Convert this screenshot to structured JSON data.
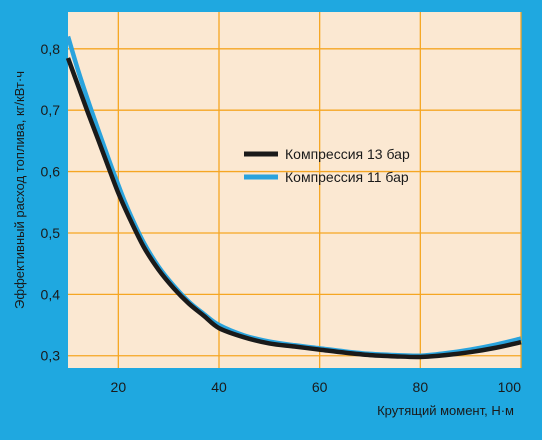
{
  "colors": {
    "frame": "#1fa8e0",
    "plot_bg": "#fbe8d2",
    "grid": "#f5a623",
    "series": [
      "#1a1a1a",
      "#2aa3dd"
    ]
  },
  "chart_data": {
    "type": "line",
    "xlabel": "Крутящий момент, Н·м",
    "ylabel": "Эффективный расход топлива, кг/кВт·ч",
    "xlim": [
      10,
      100
    ],
    "ylim": [
      0.28,
      0.86
    ],
    "x_ticks": [
      20,
      40,
      60,
      80,
      100
    ],
    "x_tick_labels": [
      "20",
      "40",
      "60",
      "80",
      "100"
    ],
    "y_ticks": [
      0.3,
      0.4,
      0.5,
      0.6,
      0.7,
      0.8
    ],
    "y_tick_labels": [
      "0,3",
      "0,4",
      "0,5",
      "0,6",
      "0,7",
      "0,8"
    ],
    "grid": true,
    "legend_position": "center",
    "series": [
      {
        "name": "Компрессия 13 бар",
        "x": [
          10,
          12,
          14,
          16,
          18,
          20,
          22,
          25,
          28,
          31,
          34,
          37,
          40,
          45,
          50,
          55,
          60,
          65,
          70,
          75,
          80,
          85,
          90,
          95,
          100
        ],
        "y": [
          0.785,
          0.74,
          0.695,
          0.652,
          0.608,
          0.565,
          0.528,
          0.478,
          0.44,
          0.41,
          0.385,
          0.365,
          0.345,
          0.33,
          0.32,
          0.315,
          0.31,
          0.305,
          0.301,
          0.299,
          0.298,
          0.301,
          0.306,
          0.313,
          0.322
        ]
      },
      {
        "name": "Компрессия 11 бар",
        "x": [
          10,
          12,
          14,
          16,
          18,
          20,
          22,
          25,
          28,
          31,
          34,
          37,
          40,
          45,
          50,
          55,
          60,
          65,
          70,
          75,
          80,
          85,
          90,
          95,
          100
        ],
        "y": [
          0.82,
          0.765,
          0.715,
          0.668,
          0.622,
          0.578,
          0.537,
          0.485,
          0.445,
          0.414,
          0.388,
          0.368,
          0.35,
          0.333,
          0.323,
          0.317,
          0.312,
          0.307,
          0.303,
          0.301,
          0.3,
          0.304,
          0.31,
          0.318,
          0.328
        ]
      }
    ]
  }
}
